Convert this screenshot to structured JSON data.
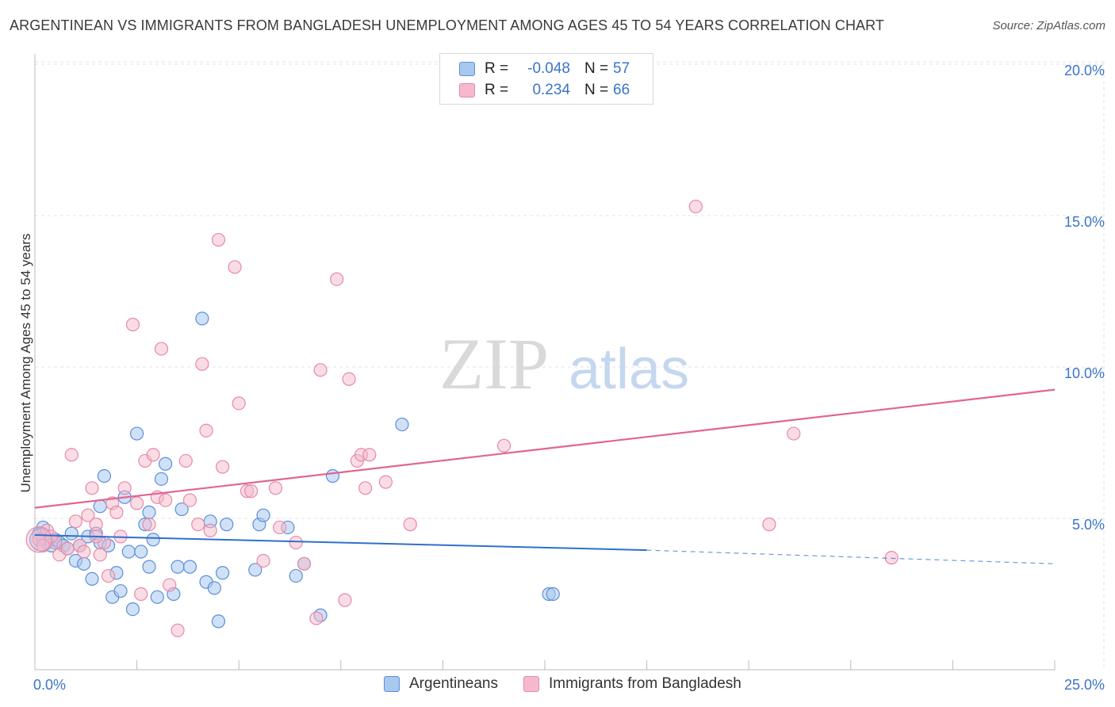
{
  "header": {
    "title": "ARGENTINEAN VS IMMIGRANTS FROM BANGLADESH UNEMPLOYMENT AMONG AGES 45 TO 54 YEARS CORRELATION CHART",
    "source": "Source: ZipAtlas.com"
  },
  "legend": {
    "rows": [
      {
        "r_label": "R =",
        "r_value": "-0.048",
        "n_label": "N =",
        "n_value": "57"
      },
      {
        "r_label": "R =",
        "r_value": "0.234",
        "n_label": "N =",
        "n_value": "66"
      }
    ],
    "bottom": [
      "Argentineans",
      "Immigrants from Bangladesh"
    ]
  },
  "colors": {
    "blue_fill": "#a9c8f0",
    "blue_stroke": "#5b8fd8",
    "blue_line": "#2f6fce",
    "pink_fill": "#f6b9cc",
    "pink_stroke": "#e58aa8",
    "pink_line": "#e0668f",
    "tick_text": "#3a74c9",
    "grid": "#e3e3e3"
  },
  "watermark": {
    "part1": "ZIP",
    "part2": "atlas"
  },
  "chart_data": {
    "type": "scatter",
    "title": "ARGENTINEAN VS IMMIGRANTS FROM BANGLADESH UNEMPLOYMENT AMONG AGES 45 TO 54 YEARS CORRELATION CHART",
    "xlabel": "",
    "ylabel": "Unemployment Among Ages 45 to 54 years",
    "xlim": [
      0,
      25
    ],
    "ylim": [
      0,
      20
    ],
    "x_tick_labels": [
      "0.0%",
      "25.0%"
    ],
    "y_ticks": [
      5,
      10,
      15,
      20
    ],
    "y_tick_labels": [
      "5.0%",
      "10.0%",
      "15.0%",
      "20.0%"
    ],
    "grid": true,
    "legend_position": "top-center",
    "series": [
      {
        "name": "Argentineans",
        "r": -0.048,
        "n": 57,
        "trend": {
          "x": [
            0,
            15
          ],
          "y": [
            4.45,
            3.95
          ],
          "dashed_to": [
            25,
            3.5
          ]
        },
        "points": [
          [
            0.2,
            4.7
          ],
          [
            0.2,
            4.3
          ],
          [
            0.3,
            4.2
          ],
          [
            0.4,
            4.1
          ],
          [
            0.5,
            4.3
          ],
          [
            0.6,
            4.2
          ],
          [
            0.7,
            4.1
          ],
          [
            0.8,
            4.0
          ],
          [
            0.9,
            4.5
          ],
          [
            1.0,
            3.6
          ],
          [
            1.1,
            4.1
          ],
          [
            1.2,
            3.5
          ],
          [
            1.3,
            4.4
          ],
          [
            1.4,
            3.0
          ],
          [
            1.5,
            4.5
          ],
          [
            1.6,
            4.2
          ],
          [
            1.6,
            5.4
          ],
          [
            1.7,
            6.4
          ],
          [
            1.8,
            4.1
          ],
          [
            1.9,
            2.4
          ],
          [
            2.0,
            3.2
          ],
          [
            2.1,
            2.6
          ],
          [
            2.2,
            5.7
          ],
          [
            2.3,
            3.9
          ],
          [
            2.4,
            2.0
          ],
          [
            2.5,
            7.8
          ],
          [
            2.6,
            3.9
          ],
          [
            2.7,
            4.8
          ],
          [
            2.8,
            3.4
          ],
          [
            2.8,
            5.2
          ],
          [
            2.9,
            4.3
          ],
          [
            3.0,
            2.4
          ],
          [
            3.1,
            6.3
          ],
          [
            3.2,
            6.8
          ],
          [
            3.4,
            2.5
          ],
          [
            3.5,
            3.4
          ],
          [
            3.6,
            5.3
          ],
          [
            3.8,
            3.4
          ],
          [
            4.1,
            11.6
          ],
          [
            4.2,
            2.9
          ],
          [
            4.3,
            4.9
          ],
          [
            4.4,
            2.7
          ],
          [
            4.5,
            1.6
          ],
          [
            4.6,
            3.2
          ],
          [
            4.7,
            4.8
          ],
          [
            5.4,
            3.3
          ],
          [
            5.5,
            4.8
          ],
          [
            5.6,
            5.1
          ],
          [
            6.2,
            4.7
          ],
          [
            6.4,
            3.1
          ],
          [
            6.6,
            3.5
          ],
          [
            7.0,
            1.8
          ],
          [
            7.3,
            6.4
          ],
          [
            9.0,
            8.1
          ],
          [
            12.6,
            2.5
          ],
          [
            12.7,
            2.5
          ],
          [
            0.1,
            4.5
          ]
        ]
      },
      {
        "name": "Immigrants from Bangladesh",
        "r": 0.234,
        "n": 66,
        "trend": {
          "x": [
            0,
            25
          ],
          "y": [
            5.35,
            9.25
          ]
        },
        "points": [
          [
            0.1,
            4.3
          ],
          [
            0.2,
            4.1
          ],
          [
            0.3,
            4.6
          ],
          [
            0.5,
            4.2
          ],
          [
            0.6,
            3.8
          ],
          [
            0.8,
            4.0
          ],
          [
            0.9,
            7.1
          ],
          [
            1.0,
            4.9
          ],
          [
            1.1,
            4.1
          ],
          [
            1.2,
            3.9
          ],
          [
            1.3,
            5.1
          ],
          [
            1.4,
            6.0
          ],
          [
            1.5,
            4.8
          ],
          [
            1.6,
            3.8
          ],
          [
            1.7,
            4.2
          ],
          [
            1.8,
            3.1
          ],
          [
            1.9,
            5.5
          ],
          [
            2.0,
            5.2
          ],
          [
            2.1,
            4.4
          ],
          [
            2.2,
            6.0
          ],
          [
            2.4,
            11.4
          ],
          [
            2.5,
            5.5
          ],
          [
            2.6,
            2.5
          ],
          [
            2.7,
            6.9
          ],
          [
            2.8,
            4.8
          ],
          [
            2.9,
            7.1
          ],
          [
            3.0,
            5.7
          ],
          [
            3.1,
            10.6
          ],
          [
            3.2,
            5.6
          ],
          [
            3.3,
            2.8
          ],
          [
            3.5,
            1.3
          ],
          [
            3.7,
            6.9
          ],
          [
            3.8,
            5.6
          ],
          [
            4.0,
            4.8
          ],
          [
            4.1,
            10.1
          ],
          [
            4.2,
            7.9
          ],
          [
            4.3,
            4.6
          ],
          [
            4.5,
            14.2
          ],
          [
            4.6,
            6.7
          ],
          [
            4.9,
            13.3
          ],
          [
            5.0,
            8.8
          ],
          [
            5.2,
            5.9
          ],
          [
            5.3,
            5.9
          ],
          [
            5.6,
            3.6
          ],
          [
            5.9,
            6.0
          ],
          [
            6.0,
            4.7
          ],
          [
            6.4,
            4.2
          ],
          [
            6.6,
            3.5
          ],
          [
            6.9,
            1.7
          ],
          [
            7.0,
            9.9
          ],
          [
            7.4,
            12.9
          ],
          [
            7.6,
            2.3
          ],
          [
            7.7,
            9.6
          ],
          [
            7.9,
            6.9
          ],
          [
            8.0,
            7.1
          ],
          [
            8.1,
            6.0
          ],
          [
            8.2,
            7.1
          ],
          [
            8.6,
            6.2
          ],
          [
            9.2,
            4.8
          ],
          [
            11.5,
            7.4
          ],
          [
            16.2,
            15.3
          ],
          [
            18.0,
            4.8
          ],
          [
            18.6,
            7.8
          ],
          [
            21.0,
            3.7
          ],
          [
            0.4,
            4.4
          ],
          [
            1.5,
            4.4
          ]
        ]
      }
    ]
  }
}
